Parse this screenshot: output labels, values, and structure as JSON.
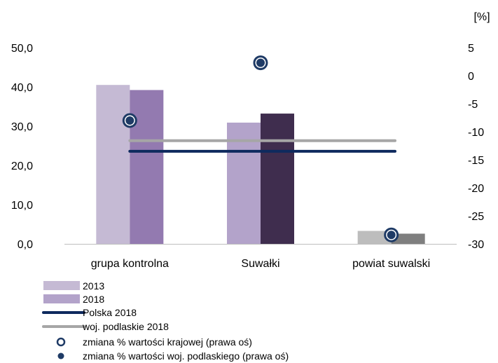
{
  "chart_data": {
    "type": "bar",
    "categories": [
      "grupa kontrolna",
      "Suwałki",
      "powiat suwalski"
    ],
    "y_left": {
      "ylim": [
        0,
        50
      ],
      "ticks": [
        "0,0",
        "10,0",
        "20,0",
        "30,0",
        "40,0",
        "50,0"
      ]
    },
    "y_right": {
      "unit_label": "[%]",
      "ylim": [
        -30,
        5
      ],
      "ticks": [
        "5",
        "0",
        "-5",
        "-10",
        "-15",
        "-20",
        "-25",
        "-30"
      ]
    },
    "bar_series": [
      {
        "name": "2013",
        "values": [
          40.5,
          30.9,
          3.3
        ],
        "colors": [
          "#c5bad4",
          "#b3a3ca",
          "#bdbdbd"
        ]
      },
      {
        "name": "2018",
        "values": [
          39.2,
          33.2,
          2.6
        ],
        "colors": [
          "#937ab0",
          "#3f2d4e",
          "#7f7f7f"
        ]
      }
    ],
    "line_series": [
      {
        "name": "Polska 2018",
        "value": 23.6,
        "color": "#0e2a5e"
      },
      {
        "name": "woj. podlaskie 2018",
        "value": 26.3,
        "color": "#a6a6a6"
      }
    ],
    "point_series": [
      {
        "name": "zmiana % wartości krajowej (prawa oś)",
        "values": [
          -8.0,
          2.3,
          -28.4
        ],
        "color": "#1f3b66"
      },
      {
        "name": "zmiana % wartości woj. podlaskiego (prawa oś)",
        "values": [
          -8.0,
          2.3,
          -28.4
        ],
        "color": "#1f3b66"
      }
    ],
    "legend_position": "bottom-left",
    "grid": false
  }
}
